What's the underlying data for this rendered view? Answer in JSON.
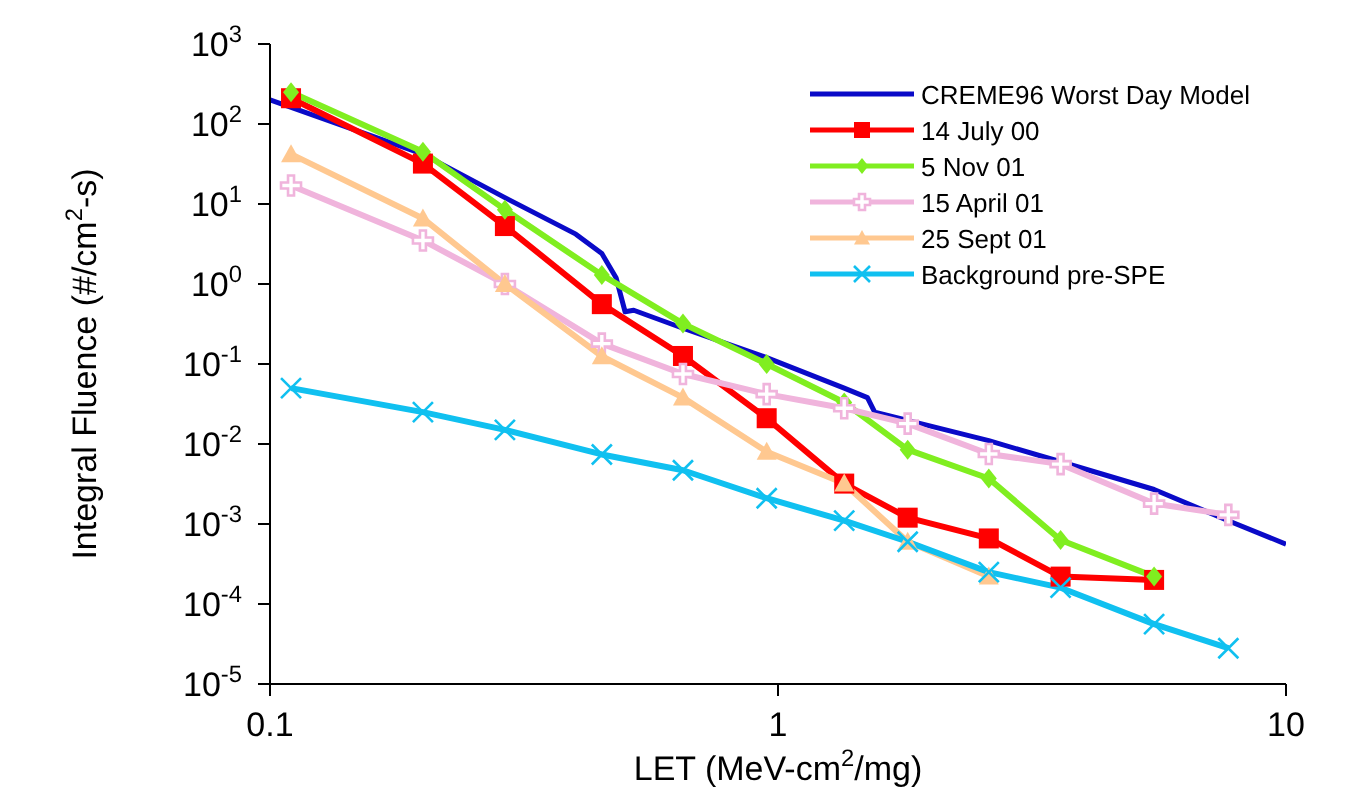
{
  "chart_data": {
    "type": "line",
    "xlabel": "LET (MeV-cm$^{2}$/mg)",
    "ylabel": "Integral Fluence (#/cm$^{2}$-s)",
    "log": "xy",
    "grid": false,
    "legend": "top right",
    "line_style": "solid",
    "xlim": [
      0.1,
      10
    ],
    "xticks": [
      0.1,
      1,
      10
    ],
    "ylim": [
      1e-05,
      1000
    ],
    "yticks": [
      {
        "value": 1e-05,
        "label": "10$^{-5}$"
      },
      {
        "value": 0.0001,
        "label": "10$^{-4}$"
      },
      {
        "value": 0.001,
        "label": "10$^{-3}$"
      },
      {
        "value": 0.01,
        "label": "10$^{-2}$"
      },
      {
        "value": 0.1,
        "label": "10$^{-1}$"
      },
      {
        "value": 1,
        "label": "10$^{0}$"
      },
      {
        "value": 10,
        "label": "10$^{1}$"
      },
      {
        "value": 100,
        "label": "10$^{2}$"
      },
      {
        "value": 1000,
        "label": "10$^{3}$"
      }
    ],
    "series": [
      {
        "name": "CREME96 Worst Day Model",
        "color": "#0a0ac8",
        "marker": "none",
        "x": [
          0.1,
          0.2,
          0.29,
          0.4,
          0.45,
          0.48,
          0.5,
          0.52,
          0.65,
          0.95,
          1.35,
          1.5,
          1.55,
          2.6,
          3.6,
          5.5,
          7.7,
          10
        ],
        "values": [
          200,
          42,
          12,
          4.2,
          2.4,
          1.2,
          0.45,
          0.47,
          0.28,
          0.12,
          0.05,
          0.038,
          0.025,
          0.011,
          0.006,
          0.0027,
          0.0011,
          0.00056
        ]
      },
      {
        "name": "14 July 00",
        "color": "#ff0000",
        "marker": "square",
        "x": [
          0.11,
          0.2,
          0.29,
          0.45,
          0.65,
          0.95,
          1.35,
          1.8,
          2.6,
          3.6,
          5.5
        ],
        "values": [
          210,
          32,
          5.3,
          0.56,
          0.126,
          0.021,
          0.0032,
          0.0012,
          0.00066,
          0.00022,
          0.0002
        ]
      },
      {
        "name": "5 Nov 01",
        "color": "#80ee20",
        "marker": "diamond",
        "x": [
          0.11,
          0.2,
          0.29,
          0.45,
          0.65,
          0.95,
          1.35,
          1.8,
          2.6,
          3.6,
          5.5
        ],
        "values": [
          250,
          45,
          8.5,
          1.3,
          0.32,
          0.1,
          0.033,
          0.0085,
          0.0037,
          0.00063,
          0.00022
        ]
      },
      {
        "name": "15 April 01",
        "color": "#f0b4dc",
        "marker": "cross",
        "x": [
          0.11,
          0.2,
          0.29,
          0.45,
          0.65,
          0.95,
          1.35,
          1.8,
          2.6,
          3.6,
          5.5,
          7.7
        ],
        "values": [
          17,
          3.5,
          1.0,
          0.18,
          0.075,
          0.042,
          0.028,
          0.018,
          0.0075,
          0.0056,
          0.0018,
          0.0013
        ]
      },
      {
        "name": "25 Sept 01",
        "color": "#ffc890",
        "marker": "triangle",
        "x": [
          0.11,
          0.2,
          0.29,
          0.45,
          0.65,
          0.95,
          1.35,
          1.8,
          2.6
        ],
        "values": [
          42,
          6.6,
          1.0,
          0.125,
          0.038,
          0.008,
          0.0032,
          0.0006,
          0.00022
        ]
      },
      {
        "name": "Background pre-SPE",
        "color": "#10c0f0",
        "marker": "x",
        "x": [
          0.11,
          0.2,
          0.29,
          0.45,
          0.65,
          0.95,
          1.35,
          1.8,
          2.6,
          3.6,
          5.5,
          7.7
        ],
        "values": [
          0.05,
          0.025,
          0.015,
          0.0074,
          0.0047,
          0.0021,
          0.0011,
          0.0006,
          0.00025,
          0.00016,
          5.6e-05,
          2.8e-05
        ]
      }
    ]
  }
}
